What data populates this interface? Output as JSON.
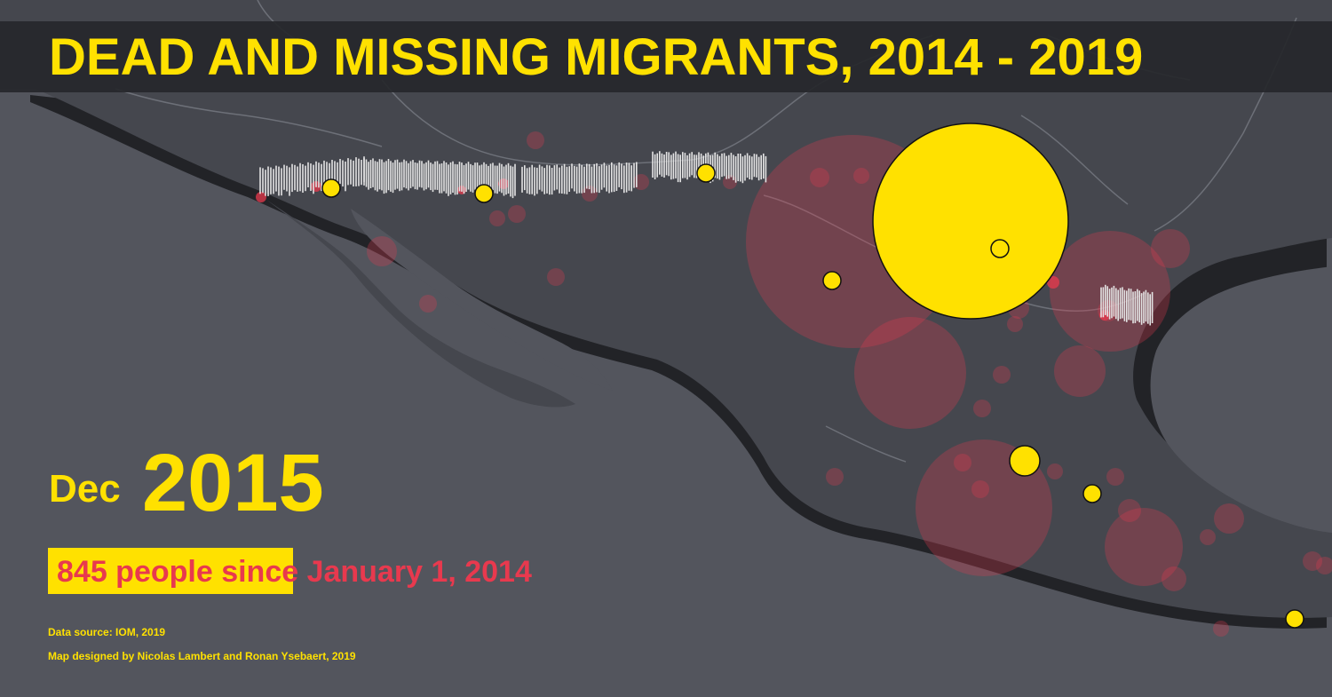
{
  "title": "DEAD AND MISSING MIGRANTS, 2014 - 2019",
  "current_date": {
    "month": "Dec",
    "year": "2015"
  },
  "counter": {
    "text": "845 people since January 1, 2014",
    "period_progress": 0.6
  },
  "credits": {
    "source": "Data source: IOM, 2019",
    "design": "Map designed by Nicolas Lambert and Ronan Ysebaert, 2019"
  },
  "colors": {
    "background": "#53555d",
    "land": "#44464d",
    "title_bar": "#26272b",
    "accent_yellow": "#ffe100",
    "accent_red": "#e8394e",
    "wall": "#e4e4e4"
  },
  "legend_semantics": {
    "yellow_circles": "recent events (current month)",
    "red_circles": "cumulative past events",
    "white_bars": "border wall"
  }
}
